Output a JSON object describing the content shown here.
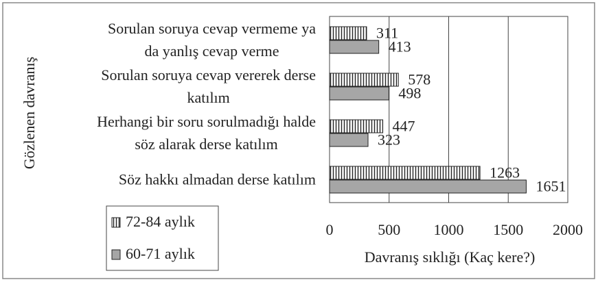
{
  "chart_data": {
    "type": "barh",
    "xlabel": "Davranış sıklığı (Kaç kere?)",
    "ylabel": "Gözlenen davranış",
    "categories": [
      "Sorulan soruya cevap vermeme ya\nda yanlış cevap verme",
      "Sorulan soruya cevap vererek derse\nkatılım",
      "Herhangi bir soru sorulmadığı halde\nsöz alarak derse katılım",
      "Söz hakkı almadan derse katılım"
    ],
    "series": [
      {
        "name": "72-84 aylık",
        "color": "#ffffff",
        "hatch": "vertical",
        "values": [
          311,
          578,
          447,
          1263
        ]
      },
      {
        "name": "60-71 aylık",
        "color": "#a6a6a6",
        "values": [
          413,
          498,
          323,
          1651
        ]
      }
    ],
    "xlim": [
      0,
      2000
    ],
    "xticks": [
      0,
      500,
      1000,
      1500,
      2000
    ],
    "grid": true,
    "legend": "lower left"
  }
}
